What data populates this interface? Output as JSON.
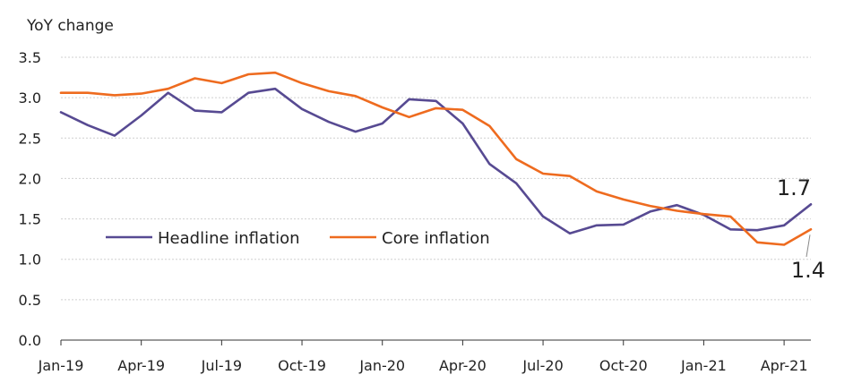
{
  "chart_data": {
    "type": "line",
    "title": "",
    "ylabel": "YoY change",
    "xlabel": "",
    "ylim": [
      0,
      3.5
    ],
    "yticks": [
      0.0,
      0.5,
      1.0,
      1.5,
      2.0,
      2.5,
      3.0,
      3.5
    ],
    "ytick_labels": [
      "0.0",
      "0.5",
      "1.0",
      "1.5",
      "2.0",
      "2.5",
      "3.0",
      "3.5"
    ],
    "x": [
      "Jan-19",
      "Feb-19",
      "Mar-19",
      "Apr-19",
      "May-19",
      "Jun-19",
      "Jul-19",
      "Aug-19",
      "Sep-19",
      "Oct-19",
      "Nov-19",
      "Dec-19",
      "Jan-20",
      "Feb-20",
      "Mar-20",
      "Apr-20",
      "May-20",
      "Jun-20",
      "Jul-20",
      "Aug-20",
      "Sep-20",
      "Oct-20",
      "Nov-20",
      "Dec-20",
      "Jan-21",
      "Feb-21",
      "Mar-21",
      "Apr-21",
      "May-21"
    ],
    "xtick_labels": [
      "Jan-19",
      "Apr-19",
      "Jul-19",
      "Oct-19",
      "Jan-20",
      "Apr-20",
      "Jul-20",
      "Oct-20",
      "Jan-21",
      "Apr-21"
    ],
    "grid": "horizontal",
    "legend_position": "left-middle",
    "series": [
      {
        "name": "Headline inflation",
        "color": "#574a92",
        "values": [
          2.82,
          2.66,
          2.53,
          2.78,
          3.06,
          2.84,
          2.82,
          3.06,
          3.11,
          2.86,
          2.7,
          2.58,
          2.68,
          2.98,
          2.96,
          2.68,
          2.18,
          1.94,
          1.53,
          1.32,
          1.42,
          1.43,
          1.59,
          1.67,
          1.55,
          1.37,
          1.36,
          1.42,
          1.68
        ]
      },
      {
        "name": "Core inflation",
        "color": "#ee6b1f",
        "values": [
          3.06,
          3.06,
          3.03,
          3.05,
          3.11,
          3.24,
          3.18,
          3.29,
          3.31,
          3.18,
          3.08,
          3.02,
          2.88,
          2.76,
          2.87,
          2.85,
          2.65,
          2.24,
          2.06,
          2.03,
          1.84,
          1.74,
          1.66,
          1.6,
          1.56,
          1.53,
          1.21,
          1.18,
          1.37
        ]
      }
    ],
    "annotations": [
      {
        "text": "1.7",
        "series": "Headline inflation",
        "x": "May-21",
        "y": 1.68
      },
      {
        "text": "1.4",
        "series": "Core inflation",
        "x": "May-21",
        "y": 1.37
      }
    ]
  }
}
